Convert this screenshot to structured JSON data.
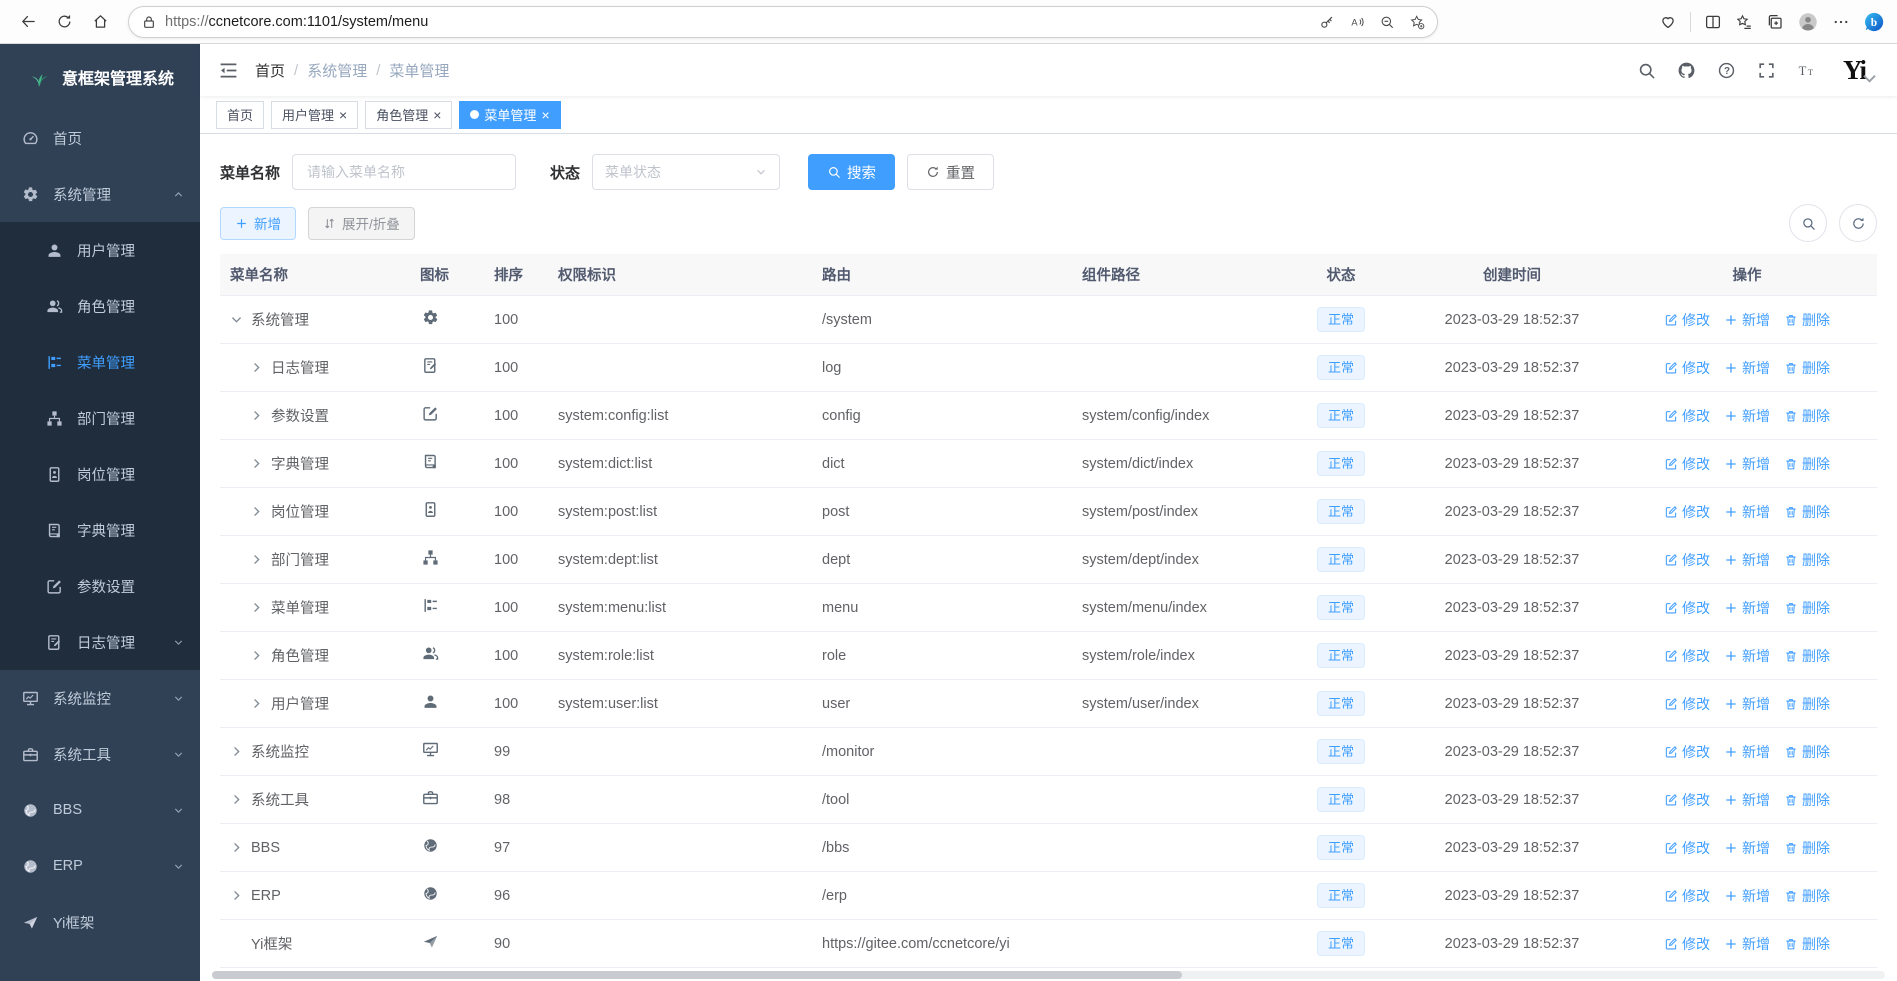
{
  "browser": {
    "url_scheme": "https://",
    "url_rest": "ccnetcore.com:1101/system/menu",
    "left_icons": [
      "back",
      "refresh",
      "home"
    ],
    "pill_icons": [
      "key",
      "read-aloud",
      "zoom-out",
      "favorite-add"
    ],
    "right_icons": [
      "browser-essentials",
      "split-screen",
      "favorites",
      "collections",
      "profile",
      "more",
      "copilot"
    ]
  },
  "app": {
    "colors": {
      "accent": "#409eff",
      "sidebar_bg": "#304156",
      "submenu_bg": "#1f2d3d",
      "badge_bg": "#ecf5ff",
      "badge_border": "#d9ecff",
      "active_tab_bg": "#409eff"
    },
    "sidebar": {
      "title": "意框架管理系统",
      "logo_icon": "leaf-logo",
      "items": [
        {
          "key": "home",
          "label": "首页",
          "icon": "dashboard"
        },
        {
          "key": "system",
          "label": "系统管理",
          "icon": "gear",
          "caret": "up",
          "children": [
            {
              "key": "user",
              "label": "用户管理",
              "icon": "user"
            },
            {
              "key": "role",
              "label": "角色管理",
              "icon": "peoples"
            },
            {
              "key": "menu",
              "label": "菜单管理",
              "icon": "tree-table",
              "active": true
            },
            {
              "key": "dept",
              "label": "部门管理",
              "icon": "tree"
            },
            {
              "key": "post",
              "label": "岗位管理",
              "icon": "post"
            },
            {
              "key": "dict",
              "label": "字典管理",
              "icon": "dict"
            },
            {
              "key": "config",
              "label": "参数设置",
              "icon": "edit"
            },
            {
              "key": "log",
              "label": "日志管理",
              "icon": "log",
              "caret": "down"
            }
          ]
        },
        {
          "key": "monitor",
          "label": "系统监控",
          "icon": "monitor",
          "caret": "down"
        },
        {
          "key": "tool",
          "label": "系统工具",
          "icon": "tool",
          "caret": "down"
        },
        {
          "key": "bbs",
          "label": "BBS",
          "icon": "globe",
          "caret": "down"
        },
        {
          "key": "erp",
          "label": "ERP",
          "icon": "globe",
          "caret": "down"
        },
        {
          "key": "yi",
          "label": "Yi框架",
          "icon": "guide"
        }
      ]
    },
    "navbar": {
      "breadcrumb": [
        "首页",
        "系统管理",
        "菜单管理"
      ],
      "icons": [
        "search",
        "github",
        "help",
        "fullscreen",
        "font-size"
      ],
      "logo_text": "Yi"
    },
    "tabs": [
      {
        "key": "home",
        "label": "首页",
        "closable": false,
        "active": false
      },
      {
        "key": "user",
        "label": "用户管理",
        "closable": true,
        "active": false
      },
      {
        "key": "role",
        "label": "角色管理",
        "closable": true,
        "active": false
      },
      {
        "key": "menu",
        "label": "菜单管理",
        "closable": true,
        "active": true
      }
    ],
    "search": {
      "name_label": "菜单名称",
      "name_placeholder": "请输入菜单名称",
      "name_value": "",
      "status_label": "状态",
      "status_placeholder": "菜单状态",
      "search_label": "搜索",
      "reset_label": "重置"
    },
    "toolbar": {
      "add_label": "新增",
      "toggle_label": "展开/折叠"
    },
    "table": {
      "headers": [
        "菜单名称",
        "图标",
        "排序",
        "权限标识",
        "路由",
        "组件路径",
        "状态",
        "创建时间",
        "操作"
      ],
      "action_labels": [
        "修改",
        "新增",
        "删除"
      ],
      "rows": [
        {
          "name": "系统管理",
          "icon": "gear",
          "level": 0,
          "expand": "open",
          "sort": "100",
          "perms": "",
          "route": "/system",
          "component": "",
          "status": "正常",
          "created": "2023-03-29 18:52:37"
        },
        {
          "name": "日志管理",
          "icon": "log",
          "level": 1,
          "expand": "closed",
          "sort": "100",
          "perms": "",
          "route": "log",
          "component": "",
          "status": "正常",
          "created": "2023-03-29 18:52:37"
        },
        {
          "name": "参数设置",
          "icon": "edit",
          "level": 1,
          "expand": "closed",
          "sort": "100",
          "perms": "system:config:list",
          "route": "config",
          "component": "system/config/index",
          "status": "正常",
          "created": "2023-03-29 18:52:37"
        },
        {
          "name": "字典管理",
          "icon": "dict",
          "level": 1,
          "expand": "closed",
          "sort": "100",
          "perms": "system:dict:list",
          "route": "dict",
          "component": "system/dict/index",
          "status": "正常",
          "created": "2023-03-29 18:52:37"
        },
        {
          "name": "岗位管理",
          "icon": "post",
          "level": 1,
          "expand": "closed",
          "sort": "100",
          "perms": "system:post:list",
          "route": "post",
          "component": "system/post/index",
          "status": "正常",
          "created": "2023-03-29 18:52:37"
        },
        {
          "name": "部门管理",
          "icon": "tree",
          "level": 1,
          "expand": "closed",
          "sort": "100",
          "perms": "system:dept:list",
          "route": "dept",
          "component": "system/dept/index",
          "status": "正常",
          "created": "2023-03-29 18:52:37"
        },
        {
          "name": "菜单管理",
          "icon": "tree-table",
          "level": 1,
          "expand": "closed",
          "sort": "100",
          "perms": "system:menu:list",
          "route": "menu",
          "component": "system/menu/index",
          "status": "正常",
          "created": "2023-03-29 18:52:37"
        },
        {
          "name": "角色管理",
          "icon": "peoples",
          "level": 1,
          "expand": "closed",
          "sort": "100",
          "perms": "system:role:list",
          "route": "role",
          "component": "system/role/index",
          "status": "正常",
          "created": "2023-03-29 18:52:37"
        },
        {
          "name": "用户管理",
          "icon": "user",
          "level": 1,
          "expand": "closed",
          "sort": "100",
          "perms": "system:user:list",
          "route": "user",
          "component": "system/user/index",
          "status": "正常",
          "created": "2023-03-29 18:52:37"
        },
        {
          "name": "系统监控",
          "icon": "monitor",
          "level": 0,
          "expand": "closed",
          "sort": "99",
          "perms": "",
          "route": "/monitor",
          "component": "",
          "status": "正常",
          "created": "2023-03-29 18:52:37"
        },
        {
          "name": "系统工具",
          "icon": "tool",
          "level": 0,
          "expand": "closed",
          "sort": "98",
          "perms": "",
          "route": "/tool",
          "component": "",
          "status": "正常",
          "created": "2023-03-29 18:52:37"
        },
        {
          "name": "BBS",
          "icon": "globe",
          "level": 0,
          "expand": "closed",
          "sort": "97",
          "perms": "",
          "route": "/bbs",
          "component": "",
          "status": "正常",
          "created": "2023-03-29 18:52:37"
        },
        {
          "name": "ERP",
          "icon": "globe",
          "level": 0,
          "expand": "closed",
          "sort": "96",
          "perms": "",
          "route": "/erp",
          "component": "",
          "status": "正常",
          "created": "2023-03-29 18:52:37"
        },
        {
          "name": "Yi框架",
          "icon": "guide",
          "level": 0,
          "expand": "none",
          "sort": "90",
          "perms": "",
          "route": "https://gitee.com/ccnetcore/yi",
          "component": "",
          "status": "正常",
          "created": "2023-03-29 18:52:37"
        }
      ]
    }
  }
}
